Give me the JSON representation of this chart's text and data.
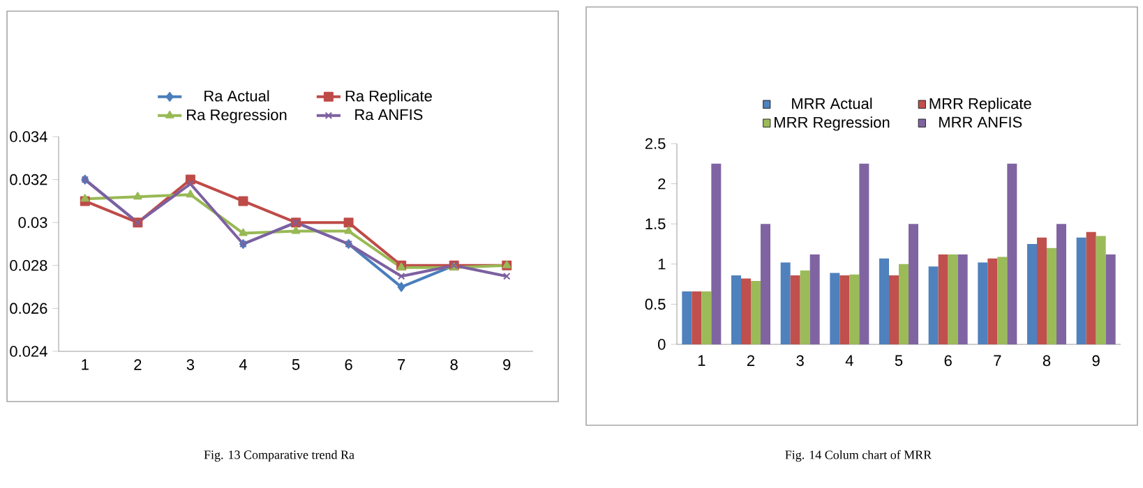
{
  "chart_data": [
    {
      "type": "line",
      "categories": [
        "1",
        "2",
        "3",
        "4",
        "5",
        "6",
        "7",
        "8",
        "9"
      ],
      "series": [
        {
          "name": "Ra Actual",
          "color": "#4a7ebb",
          "marker": "diamond",
          "values": [
            0.032,
            0.03,
            null,
            0.029,
            0.03,
            0.029,
            0.027,
            0.028,
            null
          ]
        },
        {
          "name": "Ra Replicate",
          "color": "#be4b48",
          "marker": "square",
          "values": [
            0.031,
            0.03,
            0.032,
            0.031,
            0.03,
            0.03,
            0.028,
            0.028,
            0.028
          ]
        },
        {
          "name": "Ra Regression",
          "color": "#98b954",
          "marker": "triangle",
          "values": [
            0.0311,
            0.0312,
            0.0313,
            0.0295,
            0.0296,
            0.0296,
            0.0279,
            0.0279,
            0.028
          ]
        },
        {
          "name": "Ra ANFIS",
          "color": "#7d60a0",
          "marker": "cross",
          "values": [
            0.032,
            0.03,
            0.0318,
            0.029,
            0.03,
            0.029,
            0.0275,
            0.028,
            0.0275
          ]
        }
      ],
      "ylim": [
        0.024,
        0.034
      ],
      "yticks": [
        0.024,
        0.026,
        0.028,
        0.03,
        0.032,
        0.034
      ],
      "legend": "top",
      "annotations": [
        "Fig. 13 Comparative trend Ra"
      ]
    },
    {
      "type": "bar",
      "categories": [
        "1",
        "2",
        "3",
        "4",
        "5",
        "6",
        "7",
        "8",
        "9"
      ],
      "series": [
        {
          "name": "MRR Actual",
          "color": "#4f81bd",
          "values": [
            0.66,
            0.86,
            1.02,
            0.89,
            1.07,
            0.97,
            1.02,
            1.25,
            1.33
          ]
        },
        {
          "name": "MRR Replicate",
          "color": "#c0504d",
          "values": [
            0.66,
            0.82,
            0.86,
            0.86,
            0.86,
            1.12,
            1.07,
            1.33,
            1.4
          ]
        },
        {
          "name": "MRR Regression",
          "color": "#9bbb59",
          "values": [
            0.66,
            0.79,
            0.92,
            0.87,
            1.0,
            1.12,
            1.09,
            1.2,
            1.35
          ]
        },
        {
          "name": "MRR ANFIS",
          "color": "#8064a2",
          "values": [
            2.25,
            1.5,
            1.12,
            2.25,
            1.5,
            1.12,
            2.25,
            1.5,
            1.12
          ]
        }
      ],
      "ylim": [
        0,
        2.5
      ],
      "yticks": [
        0,
        0.5,
        1,
        1.5,
        2,
        2.5
      ],
      "legend": "top",
      "annotations": [
        "Fig. 14 Colum chart of MRR"
      ]
    }
  ]
}
